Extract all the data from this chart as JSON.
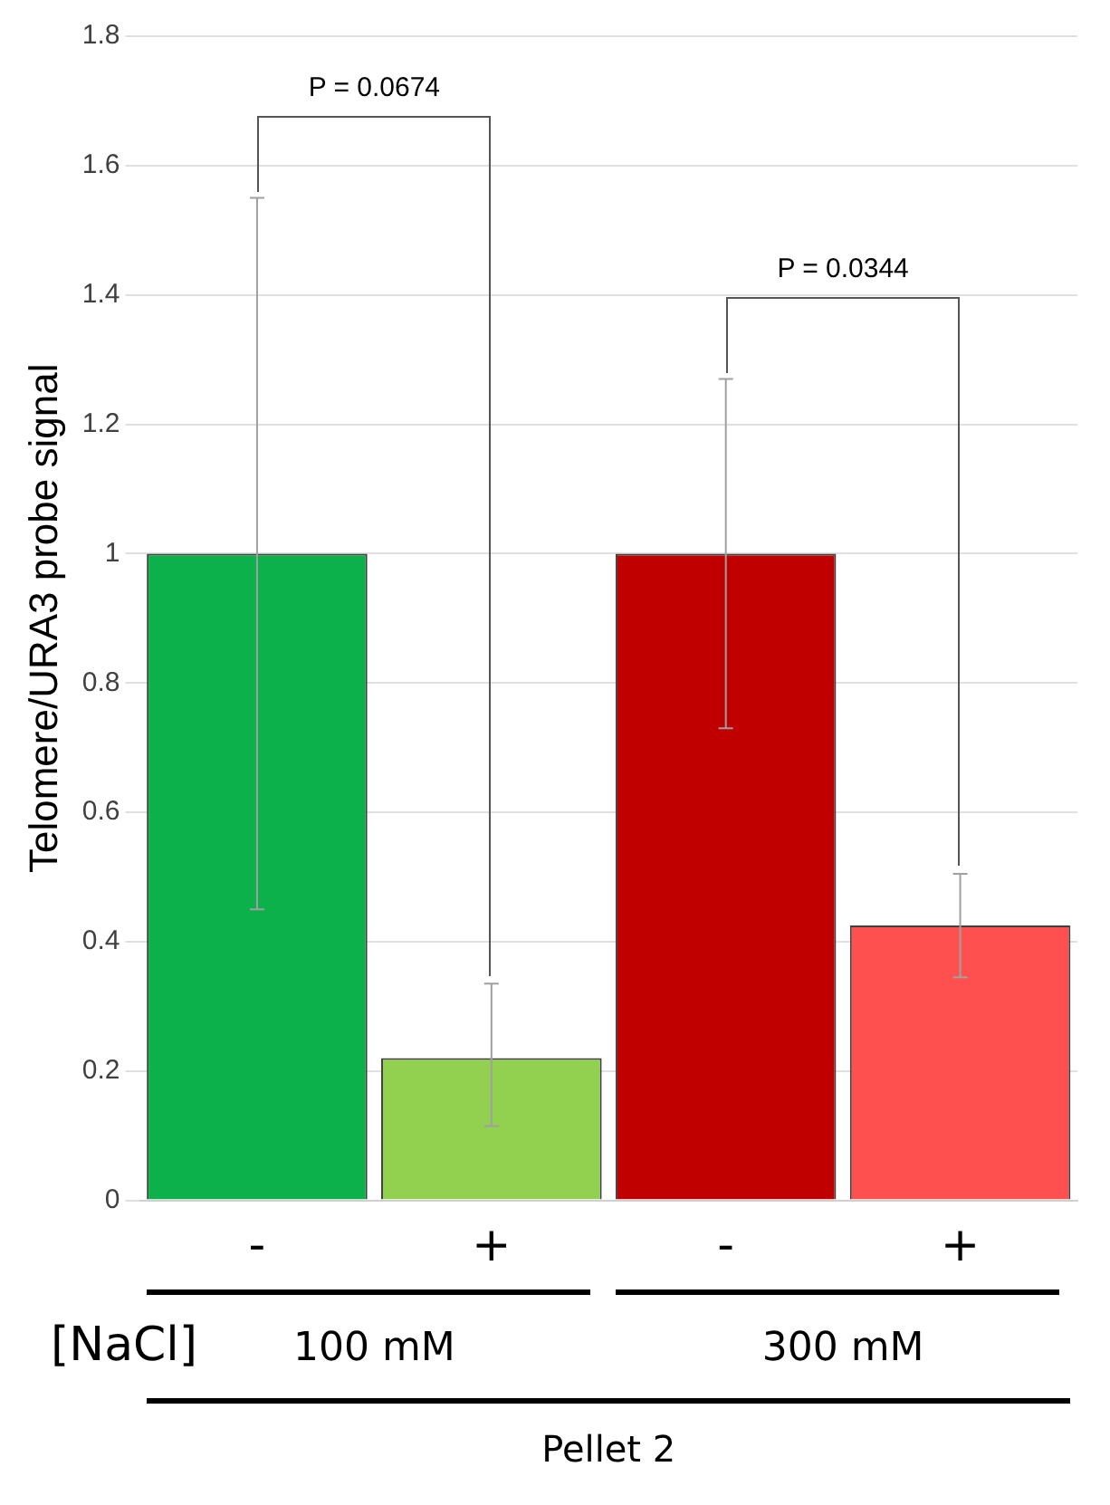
{
  "chart_data": {
    "type": "bar",
    "ylabel": "Telomere/URA3 probe signal",
    "xlabel": "Pellet 2",
    "categories": [
      "-",
      "+",
      "-",
      "+"
    ],
    "values": [
      1.0,
      0.22,
      1.0,
      0.425
    ],
    "colors": [
      "#0cb14b",
      "#92d050",
      "#c00000",
      "#ff5050"
    ],
    "errors": [
      [
        0.45,
        1.55
      ],
      [
        0.115,
        0.335
      ],
      [
        0.73,
        1.27
      ],
      [
        0.345,
        0.505
      ]
    ],
    "ylim": [
      0,
      1.8
    ],
    "yticks": [
      0,
      0.2,
      0.4,
      0.6,
      0.8,
      1,
      1.2,
      1.4,
      1.6,
      1.8
    ],
    "grid": "y",
    "legend": false,
    "annotations": [
      "P = 0.0674",
      "P = 0.0344",
      "[NaCl]",
      "100 mM",
      "300 mM"
    ]
  }
}
